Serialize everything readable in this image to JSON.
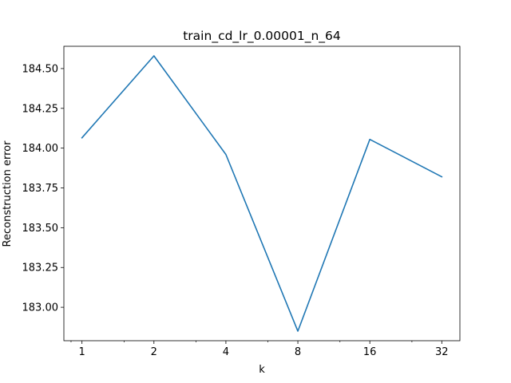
{
  "chart_data": {
    "type": "line",
    "title": "train_cd_lr_0.00001_n_64",
    "xlabel": "k",
    "ylabel": "Reconstruction error",
    "xscale": "log2",
    "x": [
      1,
      2,
      4,
      8,
      16,
      32
    ],
    "x_tick_labels": [
      "1",
      "2",
      "4",
      "8",
      "16",
      "32"
    ],
    "series": [
      {
        "values": [
          184.065,
          184.58,
          183.96,
          182.85,
          184.055,
          183.82
        ],
        "color": "#1f77b4"
      }
    ],
    "y_ticks": [
      183.0,
      183.25,
      183.5,
      183.75,
      184.0,
      184.25,
      184.5
    ],
    "y_tick_labels": [
      "183.00",
      "183.25",
      "183.50",
      "183.75",
      "184.00",
      "184.25",
      "184.50"
    ],
    "xlim": [
      0.84,
      38.1
    ],
    "ylim": [
      182.79,
      184.64
    ],
    "grid": false,
    "legend": "none"
  }
}
